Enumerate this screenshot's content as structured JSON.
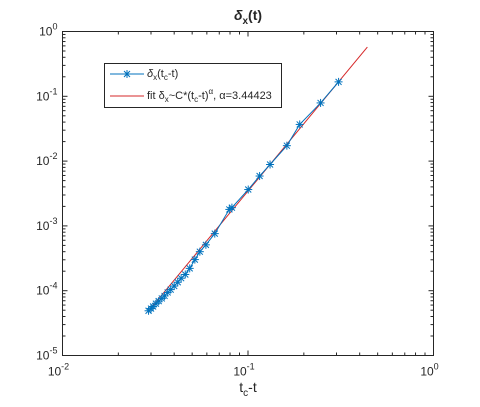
{
  "chart_data": {
    "type": "scatter",
    "title": "δx(t)",
    "xlabel": "tc-t",
    "ylabel": "",
    "xscale": "log",
    "yscale": "log",
    "xlim": [
      0.01,
      1
    ],
    "ylim": [
      1e-05,
      1
    ],
    "grid": false,
    "legend_position": "top-left",
    "x_ticks": [
      {
        "value": 0.01,
        "base": "10",
        "exp": "-2"
      },
      {
        "value": 0.1,
        "base": "10",
        "exp": "-1"
      },
      {
        "value": 1,
        "base": "10",
        "exp": "0"
      }
    ],
    "y_ticks": [
      {
        "value": 1e-05,
        "base": "10",
        "exp": "-5"
      },
      {
        "value": 0.0001,
        "base": "10",
        "exp": "-4"
      },
      {
        "value": 0.001,
        "base": "10",
        "exp": "-3"
      },
      {
        "value": 0.01,
        "base": "10",
        "exp": "-2"
      },
      {
        "value": 0.1,
        "base": "10",
        "exp": "-1"
      },
      {
        "value": 1,
        "base": "10",
        "exp": "0"
      }
    ],
    "series": [
      {
        "name": "δx(tc-t)",
        "marker": "asterisk",
        "color": "#0072BD",
        "line": true,
        "x": [
          0.0291,
          0.03,
          0.0308,
          0.0319,
          0.033,
          0.0343,
          0.0355,
          0.0369,
          0.0383,
          0.04,
          0.0418,
          0.0436,
          0.0459,
          0.0485,
          0.0517,
          0.055,
          0.0593,
          0.0662,
          0.0793,
          0.0819,
          0.1003,
          0.1155,
          0.1315,
          0.162,
          0.19,
          0.2462,
          0.3078
        ],
        "y": [
          4.9e-05,
          5.3e-05,
          5.7e-05,
          6.3e-05,
          6.9e-05,
          7.6e-05,
          8.3e-05,
          9.4e-05,
          0.000104,
          0.000118,
          0.000135,
          0.000156,
          0.000178,
          0.000221,
          0.000302,
          0.0004,
          0.00051,
          0.00076,
          0.001796,
          0.001913,
          0.00364,
          0.00588,
          0.00886,
          0.0173,
          0.0368,
          0.079,
          0.167
        ]
      },
      {
        "name": "fit δx~C*(tc-t)α, α=3.44423",
        "marker": "none",
        "color": "#D62728",
        "line": true,
        "x": [
          0.0291,
          0.44
        ],
        "y": [
          4.85e-05,
          0.575
        ]
      }
    ]
  },
  "title": {
    "main": "δ",
    "sub": "x",
    "rest": "(t)"
  },
  "xlabel": {
    "main": "t",
    "sub": "c",
    "rest": "-t"
  },
  "legend": {
    "entry1": {
      "a": "δ",
      "b": "x",
      "c": "(t",
      "d": "c",
      "e": "-t)"
    },
    "entry2": {
      "a": "fit δ",
      "b": "x",
      "c": "~C*(t",
      "d": "c",
      "e": "-t)",
      "f": "α",
      "g": ", α=3.44423"
    }
  }
}
